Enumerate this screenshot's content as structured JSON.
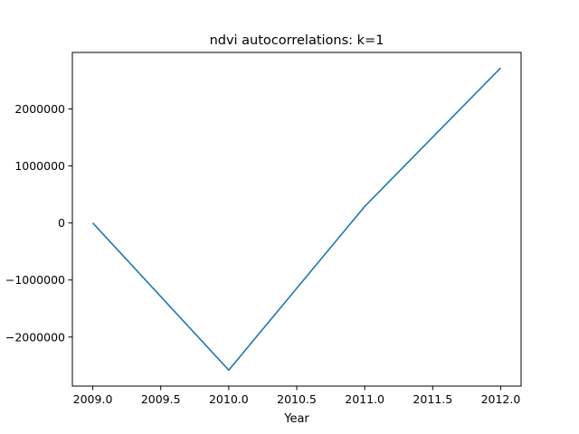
{
  "chart_data": {
    "type": "line",
    "title": "ndvi autocorrelations: k=1",
    "xlabel": "Year",
    "ylabel": "",
    "xlim": [
      2008.85,
      2012.15
    ],
    "ylim": [
      -2860000,
      2990000
    ],
    "x_ticks": [
      2009.0,
      2009.5,
      2010.0,
      2010.5,
      2011.0,
      2011.5,
      2012.0
    ],
    "x_tick_labels": [
      "2009.0",
      "2009.5",
      "2010.0",
      "2010.5",
      "2011.0",
      "2011.5",
      "2012.0"
    ],
    "y_ticks": [
      -2000000,
      -1000000,
      0,
      1000000,
      2000000
    ],
    "y_tick_labels": [
      "−2000000",
      "−1000000",
      "0",
      "1000000",
      "2000000"
    ],
    "grid": false,
    "series": [
      {
        "color": "#1f77b4",
        "x": [
          2009.0,
          2010.0,
          2011.0,
          2012.0
        ],
        "y": [
          0,
          -2580000,
          290000,
          2720000
        ]
      }
    ]
  }
}
